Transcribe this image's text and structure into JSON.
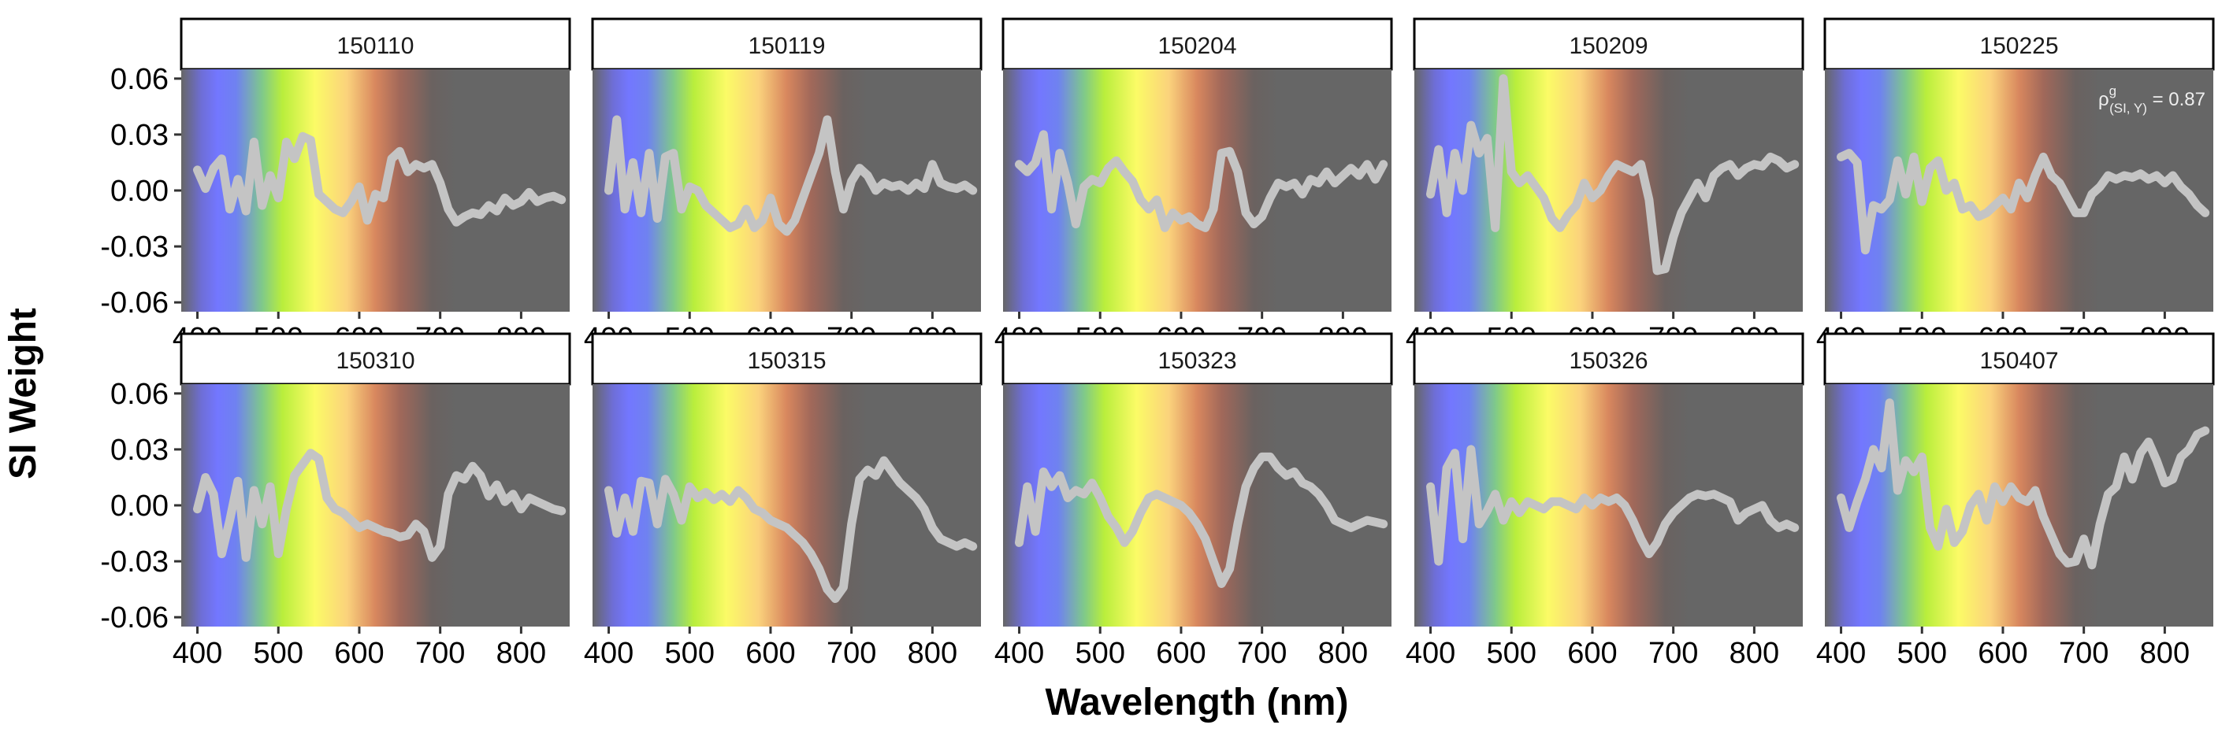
{
  "chart_data": {
    "type": "line",
    "title": "",
    "xlabel": "Wavelength (nm)",
    "ylabel": "SI Weight",
    "xlim": [
      380,
      860
    ],
    "ylim": [
      -0.065,
      0.065
    ],
    "x_ticks": [
      400,
      500,
      600,
      700,
      800
    ],
    "x_tick_labels": [
      "400",
      "500",
      "600",
      "700",
      "800"
    ],
    "y_ticks": [
      -0.06,
      -0.03,
      0.0,
      0.03,
      0.06
    ],
    "y_tick_labels": [
      "-0.06",
      "-0.03",
      "0.00",
      "0.03",
      "0.06"
    ],
    "layout": {
      "rows": 2,
      "cols": 5
    },
    "colors": {
      "panel_background": "#666666",
      "line": "#c4c4c4",
      "spectrum_stops": [
        {
          "wavelength": 380,
          "color": "#666666"
        },
        {
          "wavelength": 405,
          "color": "#6e6ed6"
        },
        {
          "wavelength": 425,
          "color": "#7377ff"
        },
        {
          "wavelength": 448,
          "color": "#6f82f0"
        },
        {
          "wavelength": 480,
          "color": "#7fc98a"
        },
        {
          "wavelength": 505,
          "color": "#b9ee3c"
        },
        {
          "wavelength": 545,
          "color": "#fbfb66"
        },
        {
          "wavelength": 585,
          "color": "#fbd27c"
        },
        {
          "wavelength": 620,
          "color": "#d8875e"
        },
        {
          "wavelength": 650,
          "color": "#a1685a"
        },
        {
          "wavelength": 690,
          "color": "#6a6260"
        },
        {
          "wavelength": 720,
          "color": "#666666"
        }
      ]
    },
    "annotation": {
      "panel": "150225",
      "text_prefix": "ρ",
      "superscript": "g",
      "subscript": "(SI, Y)",
      "text_suffix": " = 0.87"
    },
    "panels": [
      {
        "label": "150110",
        "x": [
          400,
          410,
          420,
          430,
          440,
          450,
          460,
          470,
          480,
          490,
          500,
          510,
          520,
          530,
          540,
          550,
          560,
          570,
          580,
          590,
          600,
          610,
          620,
          630,
          640,
          650,
          660,
          670,
          680,
          690,
          700,
          710,
          720,
          730,
          740,
          750,
          760,
          770,
          780,
          790,
          800,
          810,
          820,
          830,
          840,
          850
        ],
        "y": [
          0.011,
          0.001,
          0.012,
          0.017,
          -0.01,
          0.006,
          -0.011,
          0.026,
          -0.008,
          0.008,
          -0.004,
          0.026,
          0.017,
          0.029,
          0.027,
          -0.002,
          -0.006,
          -0.01,
          -0.012,
          -0.006,
          0.002,
          -0.016,
          -0.002,
          -0.004,
          0.017,
          0.021,
          0.01,
          0.014,
          0.012,
          0.014,
          0.004,
          -0.01,
          -0.017,
          -0.014,
          -0.012,
          -0.013,
          -0.008,
          -0.011,
          -0.004,
          -0.008,
          -0.006,
          -0.001,
          -0.006,
          -0.004,
          -0.003,
          -0.005
        ]
      },
      {
        "label": "150119",
        "x": [
          400,
          410,
          420,
          430,
          440,
          450,
          460,
          470,
          480,
          490,
          500,
          510,
          520,
          530,
          540,
          550,
          560,
          570,
          580,
          590,
          600,
          610,
          620,
          630,
          640,
          650,
          660,
          670,
          680,
          690,
          700,
          710,
          720,
          730,
          740,
          750,
          760,
          770,
          780,
          790,
          800,
          810,
          820,
          830,
          840,
          850
        ],
        "y": [
          0.0,
          0.038,
          -0.01,
          0.015,
          -0.012,
          0.02,
          -0.015,
          0.018,
          0.02,
          -0.01,
          0.002,
          0.0,
          -0.008,
          -0.012,
          -0.016,
          -0.02,
          -0.018,
          -0.01,
          -0.02,
          -0.016,
          -0.004,
          -0.018,
          -0.022,
          -0.016,
          -0.004,
          0.008,
          0.02,
          0.038,
          0.01,
          -0.01,
          0.005,
          0.012,
          0.008,
          0.0,
          0.004,
          0.002,
          0.003,
          0.0,
          0.004,
          0.001,
          0.014,
          0.004,
          0.002,
          0.001,
          0.003,
          0.0
        ]
      },
      {
        "label": "150204",
        "x": [
          400,
          410,
          420,
          430,
          440,
          450,
          460,
          470,
          480,
          490,
          500,
          510,
          520,
          530,
          540,
          550,
          560,
          570,
          580,
          590,
          600,
          610,
          620,
          630,
          640,
          650,
          660,
          670,
          680,
          690,
          700,
          710,
          720,
          730,
          740,
          750,
          760,
          770,
          780,
          790,
          800,
          810,
          820,
          830,
          840,
          850
        ],
        "y": [
          0.014,
          0.01,
          0.015,
          0.03,
          -0.01,
          0.02,
          0.004,
          -0.018,
          0.002,
          0.006,
          0.004,
          0.012,
          0.016,
          0.01,
          0.005,
          -0.005,
          -0.01,
          -0.005,
          -0.02,
          -0.012,
          -0.016,
          -0.014,
          -0.018,
          -0.02,
          -0.01,
          0.02,
          0.021,
          0.01,
          -0.012,
          -0.018,
          -0.014,
          -0.004,
          0.004,
          0.002,
          0.004,
          -0.002,
          0.006,
          0.004,
          0.01,
          0.004,
          0.008,
          0.012,
          0.008,
          0.014,
          0.006,
          0.014
        ]
      },
      {
        "label": "150209",
        "x": [
          400,
          410,
          420,
          430,
          440,
          450,
          460,
          470,
          480,
          490,
          500,
          510,
          520,
          530,
          540,
          550,
          560,
          570,
          580,
          590,
          600,
          610,
          620,
          630,
          640,
          650,
          660,
          670,
          680,
          690,
          700,
          710,
          720,
          730,
          740,
          750,
          760,
          770,
          780,
          790,
          800,
          810,
          820,
          830,
          840,
          850
        ],
        "y": [
          -0.002,
          0.022,
          -0.012,
          0.02,
          0.0,
          0.035,
          0.02,
          0.028,
          -0.02,
          0.06,
          0.01,
          0.004,
          0.008,
          0.002,
          -0.004,
          -0.015,
          -0.02,
          -0.013,
          -0.008,
          0.004,
          -0.004,
          0.0,
          0.008,
          0.014,
          0.012,
          0.01,
          0.014,
          -0.005,
          -0.043,
          -0.042,
          -0.025,
          -0.012,
          -0.004,
          0.004,
          -0.004,
          0.008,
          0.012,
          0.014,
          0.008,
          0.012,
          0.014,
          0.013,
          0.018,
          0.016,
          0.012,
          0.014
        ]
      },
      {
        "label": "150225",
        "x": [
          400,
          410,
          420,
          430,
          440,
          450,
          460,
          470,
          480,
          490,
          500,
          510,
          520,
          530,
          540,
          550,
          560,
          570,
          580,
          590,
          600,
          610,
          620,
          630,
          640,
          650,
          660,
          670,
          680,
          690,
          700,
          710,
          720,
          730,
          740,
          750,
          760,
          770,
          780,
          790,
          800,
          810,
          820,
          830,
          840,
          850
        ],
        "y": [
          0.018,
          0.02,
          0.015,
          -0.032,
          -0.008,
          -0.01,
          -0.005,
          0.016,
          -0.002,
          0.018,
          -0.006,
          0.012,
          0.016,
          0.0,
          0.004,
          -0.01,
          -0.008,
          -0.014,
          -0.012,
          -0.008,
          -0.004,
          -0.01,
          0.004,
          -0.004,
          0.008,
          0.018,
          0.008,
          0.004,
          -0.004,
          -0.012,
          -0.012,
          -0.002,
          0.002,
          0.008,
          0.006,
          0.008,
          0.007,
          0.009,
          0.006,
          0.008,
          0.004,
          0.008,
          0.002,
          -0.002,
          -0.008,
          -0.012
        ]
      },
      {
        "label": "150310",
        "x": [
          400,
          410,
          420,
          430,
          440,
          450,
          460,
          470,
          480,
          490,
          500,
          510,
          520,
          530,
          540,
          550,
          560,
          570,
          580,
          590,
          600,
          610,
          620,
          630,
          640,
          650,
          660,
          670,
          680,
          690,
          700,
          710,
          720,
          730,
          740,
          750,
          760,
          770,
          780,
          790,
          800,
          810,
          820,
          830,
          840,
          850
        ],
        "y": [
          -0.002,
          0.015,
          0.006,
          -0.026,
          -0.008,
          0.013,
          -0.028,
          0.008,
          -0.01,
          0.01,
          -0.026,
          -0.002,
          0.016,
          0.022,
          0.028,
          0.025,
          0.004,
          -0.002,
          -0.004,
          -0.008,
          -0.012,
          -0.01,
          -0.012,
          -0.014,
          -0.015,
          -0.017,
          -0.016,
          -0.01,
          -0.014,
          -0.028,
          -0.022,
          0.006,
          0.016,
          0.014,
          0.021,
          0.016,
          0.005,
          0.011,
          0.002,
          0.006,
          -0.002,
          0.004,
          0.002,
          0.0,
          -0.002,
          -0.003
        ]
      },
      {
        "label": "150315",
        "x": [
          400,
          410,
          420,
          430,
          440,
          450,
          460,
          470,
          480,
          490,
          500,
          510,
          520,
          530,
          540,
          550,
          560,
          570,
          580,
          590,
          600,
          610,
          620,
          630,
          640,
          650,
          660,
          670,
          680,
          690,
          700,
          710,
          720,
          730,
          740,
          750,
          760,
          770,
          780,
          790,
          800,
          810,
          820,
          830,
          840,
          850
        ],
        "y": [
          0.008,
          -0.015,
          0.004,
          -0.014,
          0.013,
          0.012,
          -0.01,
          0.014,
          0.006,
          -0.008,
          0.01,
          0.004,
          0.007,
          0.003,
          0.006,
          0.002,
          0.008,
          0.004,
          -0.002,
          -0.004,
          -0.008,
          -0.01,
          -0.012,
          -0.016,
          -0.02,
          -0.026,
          -0.034,
          -0.045,
          -0.05,
          -0.044,
          -0.01,
          0.014,
          0.019,
          0.016,
          0.024,
          0.018,
          0.012,
          0.008,
          0.004,
          -0.002,
          -0.012,
          -0.018,
          -0.02,
          -0.022,
          -0.02,
          -0.022
        ]
      },
      {
        "label": "150323",
        "x": [
          400,
          410,
          420,
          430,
          440,
          450,
          460,
          470,
          480,
          490,
          500,
          510,
          520,
          530,
          540,
          550,
          560,
          570,
          580,
          590,
          600,
          610,
          620,
          630,
          640,
          650,
          660,
          670,
          680,
          690,
          700,
          710,
          720,
          730,
          740,
          750,
          760,
          770,
          780,
          790,
          800,
          810,
          820,
          830,
          840,
          850
        ],
        "y": [
          -0.02,
          0.01,
          -0.014,
          0.018,
          0.01,
          0.016,
          0.004,
          0.008,
          0.006,
          0.012,
          0.004,
          -0.006,
          -0.012,
          -0.02,
          -0.014,
          -0.004,
          0.004,
          0.006,
          0.004,
          0.002,
          0.0,
          -0.004,
          -0.01,
          -0.018,
          -0.03,
          -0.042,
          -0.034,
          -0.01,
          0.01,
          0.02,
          0.026,
          0.026,
          0.02,
          0.016,
          0.018,
          0.012,
          0.01,
          0.006,
          0.0,
          -0.008,
          -0.01,
          -0.012,
          -0.01,
          -0.008,
          -0.009,
          -0.01
        ]
      },
      {
        "label": "150326",
        "x": [
          400,
          410,
          420,
          430,
          440,
          450,
          460,
          470,
          480,
          490,
          500,
          510,
          520,
          530,
          540,
          550,
          560,
          570,
          580,
          590,
          600,
          610,
          620,
          630,
          640,
          650,
          660,
          670,
          680,
          690,
          700,
          710,
          720,
          730,
          740,
          750,
          760,
          770,
          780,
          790,
          800,
          810,
          820,
          830,
          840,
          850
        ],
        "y": [
          0.01,
          -0.03,
          0.02,
          0.028,
          -0.018,
          0.03,
          -0.01,
          -0.003,
          0.006,
          -0.008,
          0.002,
          -0.004,
          0.002,
          0.0,
          -0.002,
          0.002,
          0.002,
          0.0,
          -0.002,
          0.004,
          0.0,
          0.004,
          0.002,
          0.004,
          0.0,
          -0.008,
          -0.018,
          -0.026,
          -0.02,
          -0.01,
          -0.004,
          0.0,
          0.004,
          0.006,
          0.005,
          0.006,
          0.004,
          0.002,
          -0.008,
          -0.004,
          -0.002,
          0.0,
          -0.008,
          -0.012,
          -0.01,
          -0.012
        ]
      },
      {
        "label": "150407",
        "x": [
          400,
          410,
          420,
          430,
          440,
          450,
          460,
          470,
          480,
          490,
          500,
          510,
          520,
          530,
          540,
          550,
          560,
          570,
          580,
          590,
          600,
          610,
          620,
          630,
          640,
          650,
          660,
          670,
          680,
          690,
          700,
          710,
          720,
          730,
          740,
          750,
          760,
          770,
          780,
          790,
          800,
          810,
          820,
          830,
          840,
          850
        ],
        "y": [
          0.004,
          -0.012,
          0.002,
          0.014,
          0.03,
          0.02,
          0.055,
          0.008,
          0.024,
          0.018,
          0.026,
          -0.012,
          -0.022,
          -0.002,
          -0.02,
          -0.014,
          0.0,
          0.006,
          -0.008,
          0.01,
          0.002,
          0.01,
          0.004,
          0.002,
          0.008,
          -0.006,
          -0.016,
          -0.026,
          -0.031,
          -0.03,
          -0.018,
          -0.032,
          -0.01,
          0.006,
          0.01,
          0.026,
          0.014,
          0.028,
          0.034,
          0.024,
          0.012,
          0.014,
          0.026,
          0.03,
          0.038,
          0.04
        ]
      }
    ]
  }
}
